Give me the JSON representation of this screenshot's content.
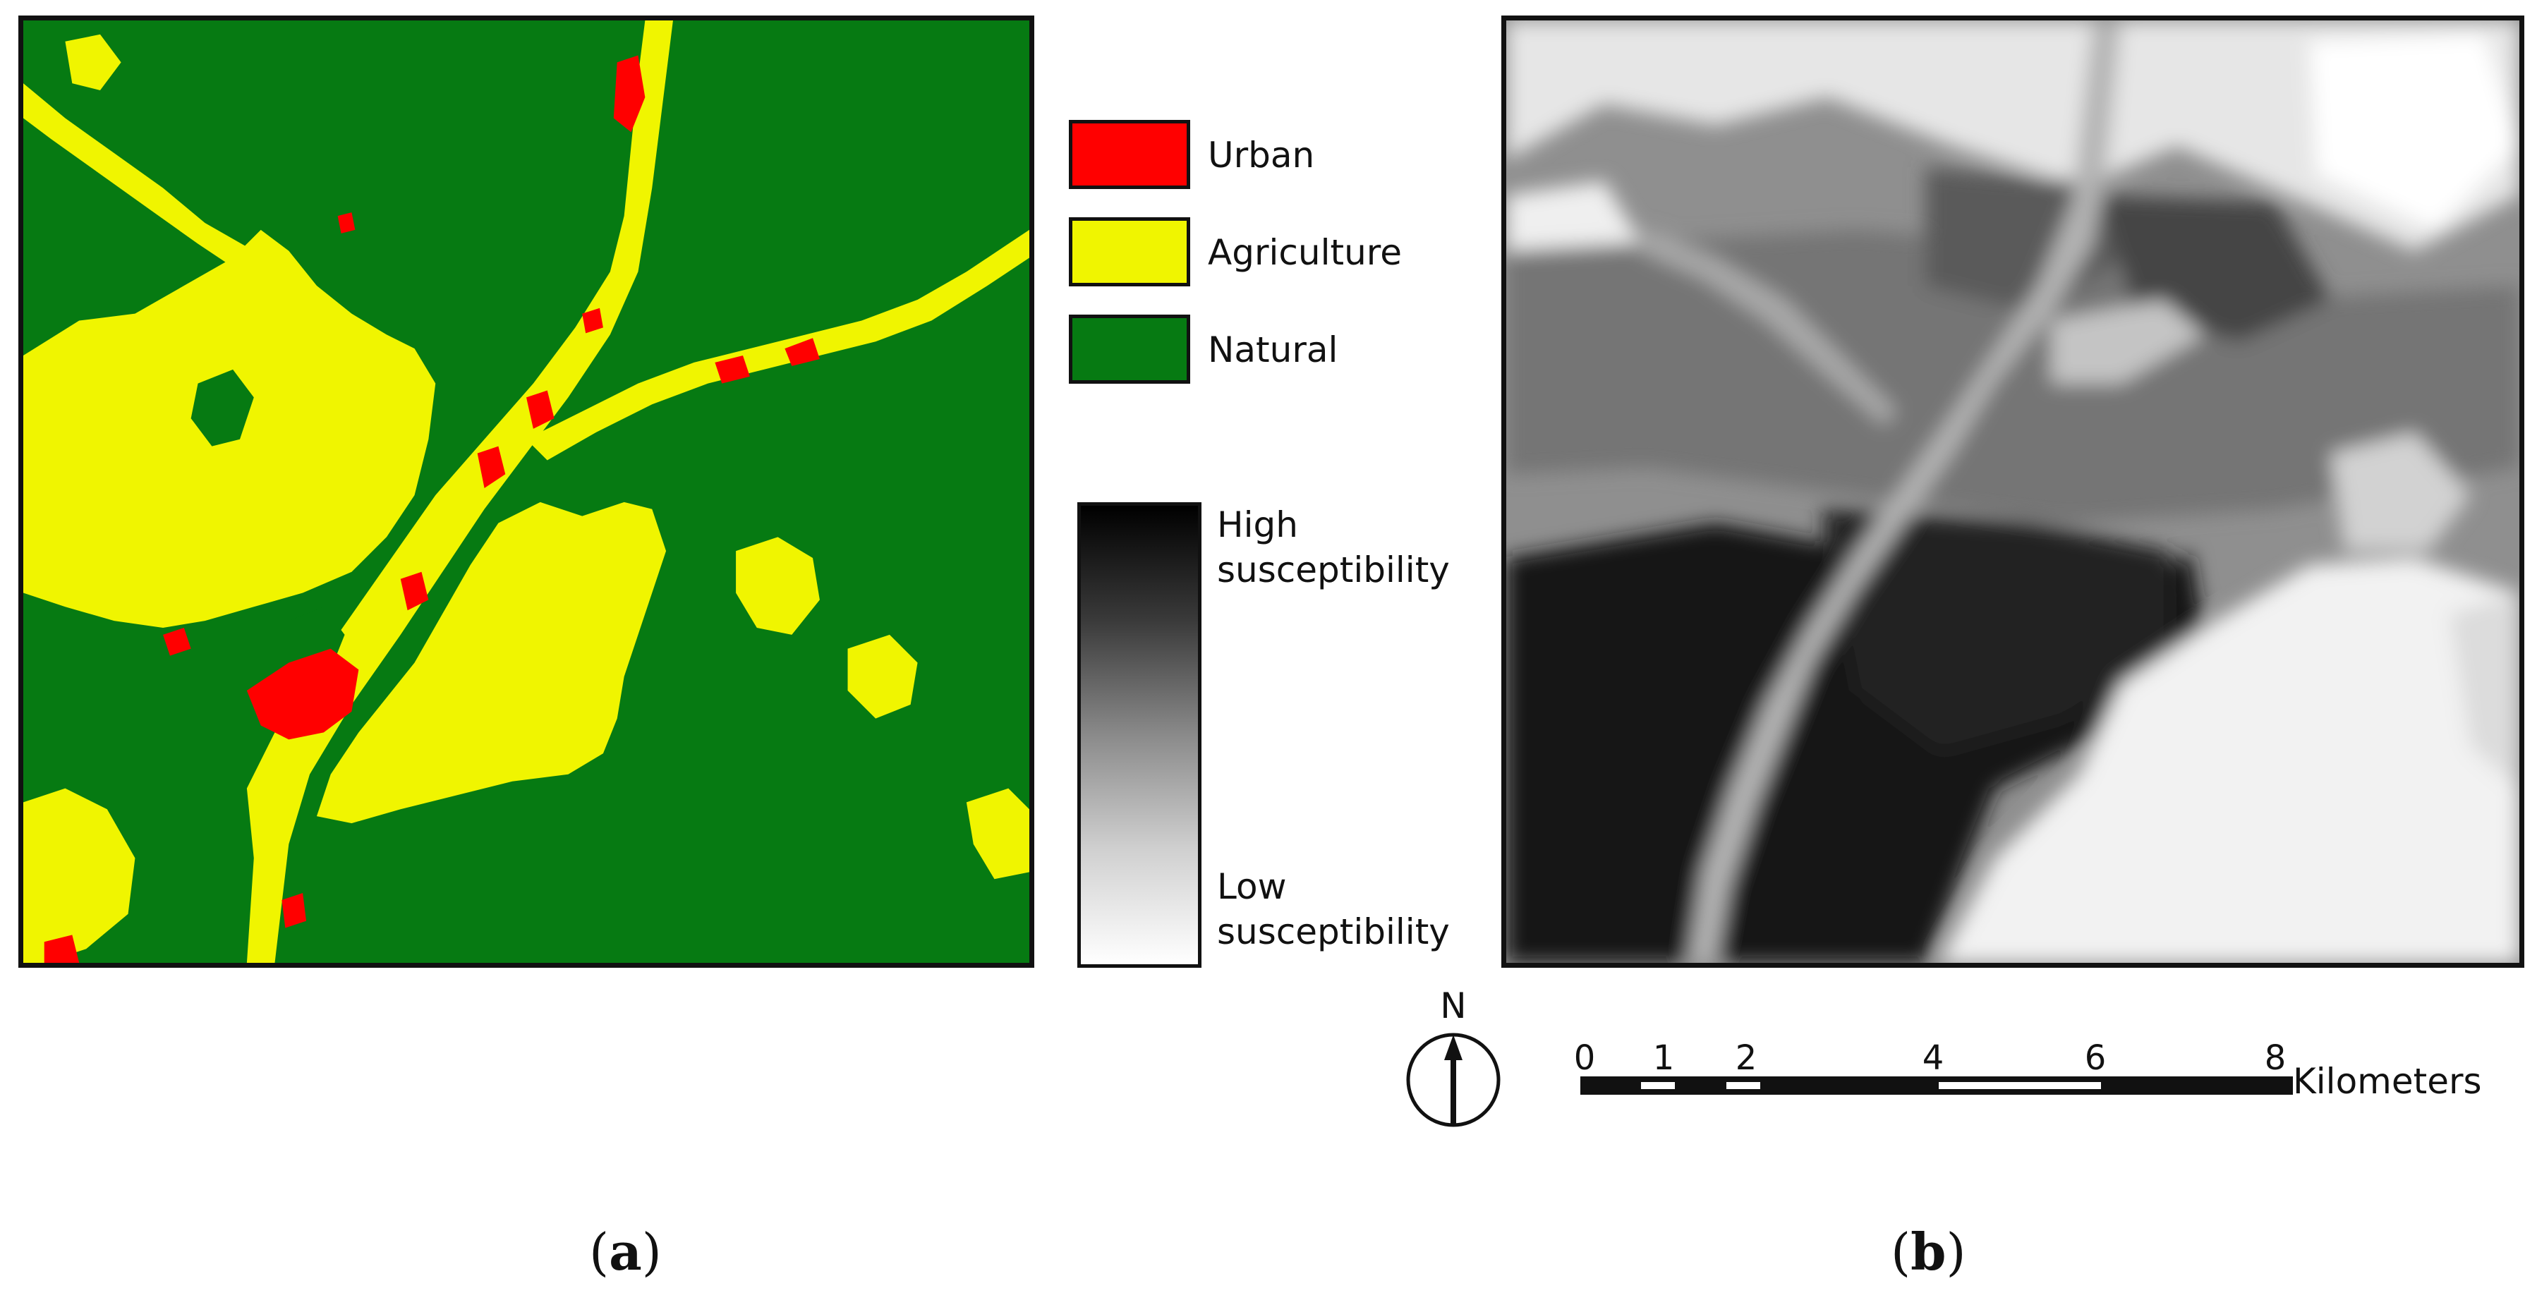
{
  "legend": {
    "classes": [
      {
        "label": "Urban",
        "color": "#ff0000"
      },
      {
        "label": "Agriculture",
        "color": "#f0f500"
      },
      {
        "label": "Natural",
        "color": "#067a12"
      }
    ],
    "gradient": {
      "high_line1": "High",
      "high_line2": "susceptibility",
      "low_line1": "Low",
      "low_line2": "susceptibility"
    }
  },
  "north_arrow": {
    "label": "N",
    "icon": "north-arrow-icon"
  },
  "scale_bar": {
    "ticks": [
      "0",
      "1",
      "2",
      "4",
      "6",
      "8"
    ],
    "unit": "Kilometers"
  },
  "captions": {
    "a_open": "(",
    "a_letter": "a",
    "a_close": ")",
    "b_open": "(",
    "b_letter": "b",
    "b_close": ")"
  }
}
